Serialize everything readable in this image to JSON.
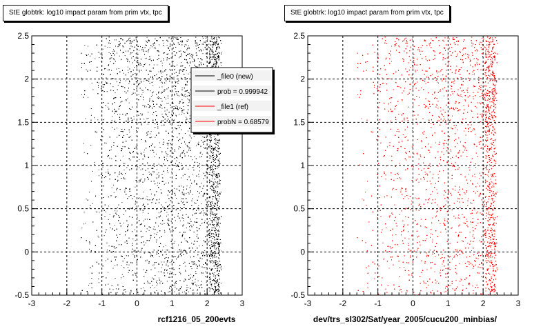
{
  "chart_data": [
    {
      "type": "scatter",
      "title": "StE globtrk: log10 impact param from prim vtx, tpc",
      "xlabel": "rcf1216_05_200evts",
      "ylabel": "",
      "xlim": [
        -3,
        3
      ],
      "ylim": [
        -0.5,
        2.5
      ],
      "xticks": [
        "-3",
        "-2",
        "-1",
        "0",
        "1",
        "2",
        "3"
      ],
      "yticks": [
        "-0.5",
        "0",
        "0.5",
        "1",
        "1.5",
        "2",
        "2.5"
      ],
      "grid": true,
      "point_color": "#000000",
      "density_profile": {
        "x_start": -1.0,
        "x_peak": 2.2,
        "x_end": 2.4,
        "denser_above_y": 1.5
      },
      "legend": {
        "placement": "top-right",
        "entries": [
          {
            "label": "_file0 (new)",
            "color": "#000000"
          },
          {
            "label": "prob = 0.999942",
            "color": "#000000"
          },
          {
            "label": "_file1 (ref)",
            "color": "#ff0000"
          },
          {
            "label": "probN = 0.68579",
            "color": "#ff0000"
          }
        ]
      }
    },
    {
      "type": "scatter",
      "title": "StE globtrk: log10 impact param from prim vtx, tpc",
      "xlabel": "dev/trs_sl302/Sat/year_2005/cucu200_minbias/",
      "ylabel": "",
      "xlim": [
        -3,
        3
      ],
      "ylim": [
        -0.5,
        2.5
      ],
      "xticks": [
        "-3",
        "-2",
        "-1",
        "0",
        "1",
        "2",
        "3"
      ],
      "yticks": [
        "-0.5",
        "0",
        "0.5",
        "1",
        "1.5",
        "2",
        "2.5"
      ],
      "grid": true,
      "point_color": "#ff0000",
      "density_profile": {
        "x_start": -1.0,
        "x_peak": 2.2,
        "x_end": 2.4,
        "denser_above_y": 1.5
      }
    }
  ]
}
